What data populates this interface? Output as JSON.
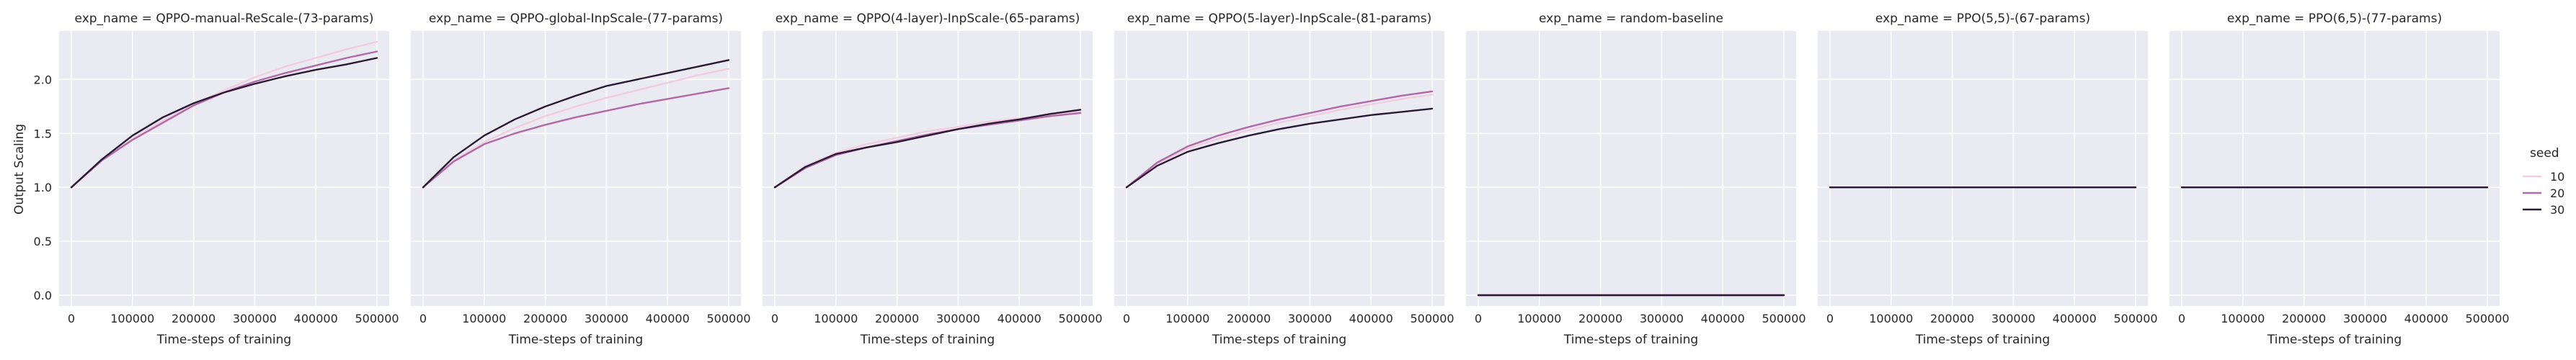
{
  "figure": {
    "ylabel": "Output Scaling",
    "xlabel": "Time-steps of training"
  },
  "legend": {
    "title": "seed",
    "entries": [
      "10",
      "20",
      "30"
    ],
    "colors": [
      "#f1cde0",
      "#b06aa6",
      "#2b1a33"
    ]
  },
  "style": {
    "panel_bg": "#eaeaf2",
    "grid": "#ffffff",
    "text": "#262626"
  },
  "chart_data": [
    {
      "type": "line",
      "title": "exp_name = QPPO-manual-ReScale-(73-params)",
      "xlim": [
        -20000,
        520000
      ],
      "ylim": [
        -0.1,
        2.45
      ],
      "xticks": [
        0,
        100000,
        200000,
        300000,
        400000,
        500000
      ],
      "yticks": [
        0.0,
        0.5,
        1.0,
        1.5,
        2.0
      ],
      "x": [
        0,
        50000,
        100000,
        150000,
        200000,
        250000,
        300000,
        350000,
        400000,
        450000,
        500000
      ],
      "series": [
        {
          "name": "10",
          "values": [
            1.0,
            1.25,
            1.45,
            1.62,
            1.77,
            1.9,
            2.02,
            2.12,
            2.2,
            2.28,
            2.35
          ]
        },
        {
          "name": "20",
          "values": [
            1.0,
            1.25,
            1.44,
            1.6,
            1.76,
            1.88,
            1.98,
            2.06,
            2.13,
            2.2,
            2.26
          ]
        },
        {
          "name": "30",
          "values": [
            1.0,
            1.26,
            1.48,
            1.65,
            1.78,
            1.88,
            1.96,
            2.03,
            2.09,
            2.14,
            2.2
          ]
        }
      ]
    },
    {
      "type": "line",
      "title": "exp_name = QPPO-global-InpScale-(77-params)",
      "xlim": [
        -20000,
        520000
      ],
      "ylim": [
        -0.1,
        2.45
      ],
      "xticks": [
        0,
        100000,
        200000,
        300000,
        400000,
        500000
      ],
      "yticks": [
        0.0,
        0.5,
        1.0,
        1.5,
        2.0
      ],
      "x": [
        0,
        50000,
        100000,
        150000,
        200000,
        250000,
        300000,
        350000,
        400000,
        450000,
        500000
      ],
      "series": [
        {
          "name": "10",
          "values": [
            1.0,
            1.25,
            1.42,
            1.55,
            1.66,
            1.75,
            1.83,
            1.9,
            1.97,
            2.04,
            2.1
          ]
        },
        {
          "name": "20",
          "values": [
            1.0,
            1.24,
            1.4,
            1.5,
            1.58,
            1.65,
            1.71,
            1.77,
            1.82,
            1.87,
            1.92
          ]
        },
        {
          "name": "30",
          "values": [
            1.0,
            1.28,
            1.48,
            1.63,
            1.75,
            1.85,
            1.94,
            2.0,
            2.06,
            2.12,
            2.18
          ]
        }
      ]
    },
    {
      "type": "line",
      "title": "exp_name = QPPO(4-layer)-InpScale-(65-params)",
      "xlim": [
        -20000,
        520000
      ],
      "ylim": [
        -0.1,
        2.45
      ],
      "xticks": [
        0,
        100000,
        200000,
        300000,
        400000,
        500000
      ],
      "yticks": [
        0.0,
        0.5,
        1.0,
        1.5,
        2.0
      ],
      "x": [
        0,
        50000,
        100000,
        150000,
        200000,
        250000,
        300000,
        350000,
        400000,
        450000,
        500000
      ],
      "series": [
        {
          "name": "10",
          "values": [
            1.0,
            1.2,
            1.32,
            1.4,
            1.46,
            1.52,
            1.56,
            1.61,
            1.64,
            1.67,
            1.7
          ]
        },
        {
          "name": "20",
          "values": [
            1.0,
            1.18,
            1.3,
            1.37,
            1.43,
            1.49,
            1.54,
            1.58,
            1.62,
            1.66,
            1.69
          ]
        },
        {
          "name": "30",
          "values": [
            1.0,
            1.19,
            1.31,
            1.37,
            1.42,
            1.48,
            1.54,
            1.59,
            1.63,
            1.68,
            1.72
          ]
        }
      ]
    },
    {
      "type": "line",
      "title": "exp_name = QPPO(5-layer)-InpScale-(81-params)",
      "xlim": [
        -20000,
        520000
      ],
      "ylim": [
        -0.1,
        2.45
      ],
      "xticks": [
        0,
        100000,
        200000,
        300000,
        400000,
        500000
      ],
      "yticks": [
        0.0,
        0.5,
        1.0,
        1.5,
        2.0
      ],
      "x": [
        0,
        50000,
        100000,
        150000,
        200000,
        250000,
        300000,
        350000,
        400000,
        450000,
        500000
      ],
      "series": [
        {
          "name": "10",
          "values": [
            1.0,
            1.22,
            1.36,
            1.45,
            1.53,
            1.6,
            1.66,
            1.72,
            1.77,
            1.82,
            1.86
          ]
        },
        {
          "name": "20",
          "values": [
            1.0,
            1.23,
            1.38,
            1.48,
            1.56,
            1.63,
            1.69,
            1.75,
            1.8,
            1.85,
            1.89
          ]
        },
        {
          "name": "30",
          "values": [
            1.0,
            1.2,
            1.33,
            1.41,
            1.48,
            1.54,
            1.59,
            1.63,
            1.67,
            1.7,
            1.73
          ]
        }
      ]
    },
    {
      "type": "line",
      "title": "exp_name = random-baseline",
      "xlim": [
        -20000,
        520000
      ],
      "ylim": [
        -0.1,
        2.45
      ],
      "xticks": [
        0,
        100000,
        200000,
        300000,
        400000,
        500000
      ],
      "yticks": [
        0.0,
        0.5,
        1.0,
        1.5,
        2.0
      ],
      "x": [
        0,
        500000
      ],
      "series": [
        {
          "name": "10",
          "values": [
            0.0,
            0.0
          ]
        },
        {
          "name": "20",
          "values": [
            0.0,
            0.0
          ]
        },
        {
          "name": "30",
          "values": [
            0.0,
            0.0
          ]
        }
      ]
    },
    {
      "type": "line",
      "title": "exp_name = PPO(5,5)-(67-params)",
      "xlim": [
        -20000,
        520000
      ],
      "ylim": [
        -0.1,
        2.45
      ],
      "xticks": [
        0,
        100000,
        200000,
        300000,
        400000,
        500000
      ],
      "yticks": [
        0.0,
        0.5,
        1.0,
        1.5,
        2.0
      ],
      "x": [
        0,
        500000
      ],
      "series": [
        {
          "name": "10",
          "values": [
            1.0,
            1.0
          ]
        },
        {
          "name": "20",
          "values": [
            1.0,
            1.0
          ]
        },
        {
          "name": "30",
          "values": [
            1.0,
            1.0
          ]
        }
      ]
    },
    {
      "type": "line",
      "title": "exp_name = PPO(6,5)-(77-params)",
      "xlim": [
        -20000,
        520000
      ],
      "ylim": [
        -0.1,
        2.45
      ],
      "xticks": [
        0,
        100000,
        200000,
        300000,
        400000,
        500000
      ],
      "yticks": [
        0.0,
        0.5,
        1.0,
        1.5,
        2.0
      ],
      "x": [
        0,
        500000
      ],
      "series": [
        {
          "name": "10",
          "values": [
            1.0,
            1.0
          ]
        },
        {
          "name": "20",
          "values": [
            1.0,
            1.0
          ]
        },
        {
          "name": "30",
          "values": [
            1.0,
            1.0
          ]
        }
      ]
    }
  ]
}
